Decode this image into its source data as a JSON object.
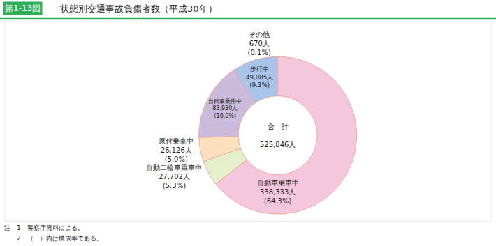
{
  "chart_data": {
    "type": "pie",
    "figure_number": "第1-13図",
    "title": "状態別交通事故負傷者数（平成30年）",
    "center_text": [
      "合　計",
      "525,846人"
    ],
    "categories": [
      "自動車乗車中",
      "自動二輪車乗車中",
      "原付乗車中",
      "自転車乗用中",
      "歩行中",
      "その他"
    ],
    "values": [
      338333,
      27702,
      26126,
      83930,
      49085,
      670
    ],
    "value_labels": [
      "338,333人",
      "27,702人",
      "26,126人",
      "83,930人",
      "49,085人",
      "670人"
    ],
    "share_labels": [
      "(64.3%)",
      "(5.3%)",
      "(5.0%)",
      "(16.0%)",
      "(9.3%)",
      "(0.1%)"
    ],
    "colors": [
      "#f5c7dd",
      "#e3f0cb",
      "#fde1bd",
      "#cbbcdd",
      "#a9c4ea",
      "#d9d9d9"
    ],
    "data_labels": true,
    "notes": [
      "注　1　警察庁資料による。",
      "　　2　（　）内は構成率である。"
    ]
  }
}
